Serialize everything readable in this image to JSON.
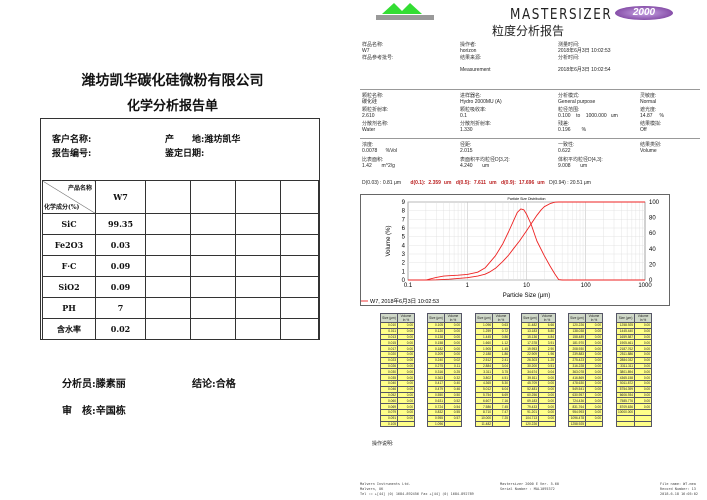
{
  "left": {
    "company": "潍坊凯华碳化硅微粉有限公司",
    "title": "化学分析报告单",
    "customer_label": "客户名称:",
    "origin_label": "产　　地:",
    "origin_value": "潍坊凯华",
    "report_no_label": "报告编号:",
    "date_label": "鉴定日期:",
    "header_product": "产品名称",
    "header_component": "化学成分(%)",
    "product": "W7",
    "rows": [
      {
        "name": "SiC",
        "value": "99.35"
      },
      {
        "name": "Fe2O3",
        "value": "0.03"
      },
      {
        "name": "F·C",
        "value": "0.09"
      },
      {
        "name": "SiO2",
        "value": "0.09"
      },
      {
        "name": "PH",
        "value": "7"
      },
      {
        "name": "含水率",
        "value": "0.02"
      }
    ],
    "analyst_label": "分析员:",
    "analyst": "滕素丽",
    "conclusion_label": "结论:",
    "conclusion": "合格",
    "reviewer_label": "审　核:",
    "reviewer": "辛国栋"
  },
  "right": {
    "logo_text": "MALVERN",
    "brand": "MASTERSIZER",
    "brand_badge": "2000",
    "title": "粒度分析报告",
    "meta": [
      {
        "label": "样品名称:",
        "value": "W7"
      },
      {
        "label": "样品参考批号:",
        "value": ""
      },
      {
        "label": "操作者:",
        "value": "horizon"
      },
      {
        "label": "结果来源:",
        "value": "Measurement"
      },
      {
        "label": "测量时间:",
        "value": "2018年6月3日 10:02:53"
      },
      {
        "label": "分析时间:",
        "value": "2018年6月3日 10:02:54"
      }
    ],
    "params": [
      {
        "label": "颗粒名称:",
        "value": "碳化硅"
      },
      {
        "label": "进样器名:",
        "value": "Hydro 2000MU (A)"
      },
      {
        "label": "分析模式:",
        "value": "General purpose"
      },
      {
        "label": "灵敏度:",
        "value": "Normal"
      },
      {
        "label": "颗粒折射率:",
        "value": "2.610"
      },
      {
        "label": "颗粒吸收率:",
        "value": "0.1"
      },
      {
        "label": "粒径范围:",
        "value": "0.100    to    1000.000   um"
      },
      {
        "label": "遮光度:",
        "value": "14.87     %"
      },
      {
        "label": "分散剂名称:",
        "value": "Water"
      },
      {
        "label": "分散剂折射率:",
        "value": "1.330"
      },
      {
        "label": "残差:",
        "value": "0.196        %"
      },
      {
        "label": "结果模拟:",
        "value": "Off"
      }
    ],
    "results": [
      {
        "label": "浓度:",
        "value": "0.0078      %Vol"
      },
      {
        "label": "径距:",
        "value": "2.015"
      },
      {
        "label": "一致性:",
        "value": "0.622"
      },
      {
        "label": "结果类别:",
        "value": "Volume"
      },
      {
        "label": "比表面积:",
        "value": "1.42       m^2/g"
      },
      {
        "label": "表面积平均粒径D[3,2]:",
        "value": "4.240       um"
      },
      {
        "label": "体积平均粒径D[4,3]:",
        "value": "9.008       um"
      },
      {
        "label": "",
        "value": ""
      }
    ],
    "d_line": {
      "d003": "D(0.03) : 0.81 μm",
      "d01_label": "d(0.1):",
      "d01": "2.359",
      "d05_label": "d(0.5):",
      "d05": "7.611",
      "d09_label": "d(0.9):",
      "d09": "17.696",
      "unit": "um",
      "d094": "D(0.94) : 20.51 μm"
    },
    "legend": "W7, 2018年6月3日 10:02:53",
    "notes_label": "操作说明:",
    "footer": {
      "left": "Malvern Instruments Ltd.\nMalvern, UK\nTel := +[44] (0) 1684-892456 Fax +[44] (0) 1684-892789",
      "center": "Mastersizer 2000 E Ver. 5.60\nSerial Number : MAL1095372",
      "right": "File name: W7.mea\nRecord Number: 13\n2018-6-18 16:05:02"
    },
    "size_table": {
      "size_header": "Size (μm)",
      "volume_header": "Volume In %",
      "blocks": [
        {
          "sizes": [
            "0.010",
            "0.011",
            "0.013",
            "0.015",
            "0.017",
            "0.020",
            "0.023",
            "0.026",
            "0.030",
            "0.035",
            "0.040",
            "0.046",
            "0.052",
            "0.060",
            "0.069",
            "0.079",
            "0.091",
            "0.105"
          ],
          "volumes": [
            "0.00",
            "0.00",
            "0.00",
            "0.00",
            "0.00",
            "0.00",
            "0.00",
            "0.00",
            "0.00",
            "0.00",
            "0.00",
            "0.00",
            "0.00",
            "0.00",
            "0.00",
            "0.00",
            "0.00"
          ]
        },
        {
          "sizes": [
            "0.105",
            "0.120",
            "0.138",
            "0.158",
            "0.182",
            "0.209",
            "0.240",
            "0.275",
            "0.316",
            "0.363",
            "0.417",
            "0.479",
            "0.550",
            "0.631",
            "0.724",
            "0.832",
            "0.955",
            "1.096"
          ],
          "volumes": [
            "0.00",
            "0.00",
            "0.00",
            "0.00",
            "0.00",
            "0.00",
            "0.02",
            "0.11",
            "0.25",
            "0.32",
            "0.40",
            "0.46",
            "0.50",
            "0.52",
            "0.54",
            "0.55",
            "0.57"
          ]
        },
        {
          "sizes": [
            "1.096",
            "1.259",
            "1.445",
            "1.660",
            "1.905",
            "2.188",
            "2.512",
            "2.884",
            "3.311",
            "3.802",
            "4.365",
            "5.012",
            "5.754",
            "6.607",
            "7.586",
            "8.710",
            "10.000",
            "11.482"
          ],
          "volumes": [
            "0.63",
            "0.72",
            "0.86",
            "1.12",
            "1.45",
            "1.86",
            "2.41",
            "3.04",
            "3.75",
            "4.51",
            "5.30",
            "6.04",
            "6.69",
            "7.16",
            "7.45",
            "7.47",
            "7.25"
          ]
        },
        {
          "sizes": [
            "11.482",
            "13.183",
            "15.136",
            "17.378",
            "19.953",
            "22.909",
            "26.303",
            "30.200",
            "34.674",
            "39.811",
            "45.709",
            "52.481",
            "60.256",
            "69.183",
            "79.433",
            "91.201",
            "104.713",
            "120.226"
          ],
          "volumes": [
            "6.66",
            "5.80",
            "4.84",
            "3.91",
            "2.90",
            "1.96",
            "1.25",
            "0.51",
            "0.04",
            "0.00",
            "0.00",
            "0.00",
            "0.00",
            "0.00",
            "0.00",
            "0.00",
            "0.00"
          ]
        },
        {
          "sizes": [
            "120.226",
            "138.038",
            "158.489",
            "181.970",
            "208.930",
            "239.883",
            "275.423",
            "316.228",
            "363.078",
            "416.869",
            "478.630",
            "549.541",
            "630.957",
            "724.436",
            "831.764",
            "954.993",
            "1096.478",
            "1258.925"
          ],
          "volumes": [
            "0.00",
            "0.00",
            "0.00",
            "0.00",
            "0.00",
            "0.00",
            "0.00",
            "0.00",
            "0.00",
            "0.00",
            "0.00",
            "0.00",
            "0.00",
            "0.00",
            "0.00",
            "0.00",
            "0.00"
          ]
        },
        {
          "sizes": [
            "1258.925",
            "1445.440",
            "1659.587",
            "1905.461",
            "2187.762",
            "2511.886",
            "2884.032",
            "3311.311",
            "3801.894",
            "4365.158",
            "5011.872",
            "5754.399",
            "6606.934",
            "7585.776",
            "8709.636",
            "10000.000"
          ],
          "volumes": [
            "0.00",
            "0.00",
            "0.00",
            "0.00",
            "0.00",
            "0.00",
            "0.00",
            "0.00",
            "0.00",
            "0.00",
            "0.00",
            "0.00",
            "0.00",
            "0.00",
            "0.00"
          ]
        }
      ]
    }
  },
  "chart_data": {
    "type": "line",
    "title": "Particle Size Distribution",
    "xlabel": "Particle Size (μm)",
    "ylabel": "Volume (%)",
    "xscale": "log",
    "xlim": [
      0.1,
      1000
    ],
    "ylim": [
      0,
      9
    ],
    "y2lim": [
      0,
      100
    ],
    "xticks": [
      "0.1",
      "1",
      "10",
      "100",
      "1000"
    ],
    "yticks": [
      "0",
      "1",
      "2",
      "3",
      "4",
      "5",
      "6",
      "7",
      "8",
      "9"
    ],
    "y2ticks": [
      "0",
      "20",
      "40",
      "60",
      "80",
      "100"
    ],
    "grid": true,
    "color": "#ee2222",
    "series": [
      {
        "axis": "left",
        "x": [
          0.1,
          0.2,
          0.3,
          0.4,
          0.5,
          0.7,
          1,
          1.5,
          2,
          3,
          4,
          5,
          6,
          7,
          8,
          9,
          10,
          12,
          15,
          20,
          25,
          30,
          35,
          40,
          1000
        ],
        "y": [
          0,
          0,
          0.3,
          0.45,
          0.5,
          0.55,
          0.65,
          0.9,
          1.4,
          2.8,
          4.2,
          5.6,
          6.8,
          7.8,
          8.2,
          8.1,
          7.6,
          6.4,
          4.5,
          2.8,
          1.6,
          0.7,
          0.05,
          0,
          0
        ]
      },
      {
        "axis": "right",
        "x": [
          0.1,
          0.2,
          0.3,
          0.5,
          1,
          1.5,
          2,
          2.359,
          3,
          4,
          5,
          6,
          7.611,
          10,
          12,
          15,
          17.696,
          20,
          25,
          30,
          35,
          1000
        ],
        "y": [
          0,
          0,
          0.2,
          1,
          3,
          5,
          7.5,
          10,
          15,
          24,
          32,
          40,
          50,
          63,
          72,
          83,
          90,
          94,
          98,
          99.7,
          100,
          100
        ]
      }
    ]
  }
}
